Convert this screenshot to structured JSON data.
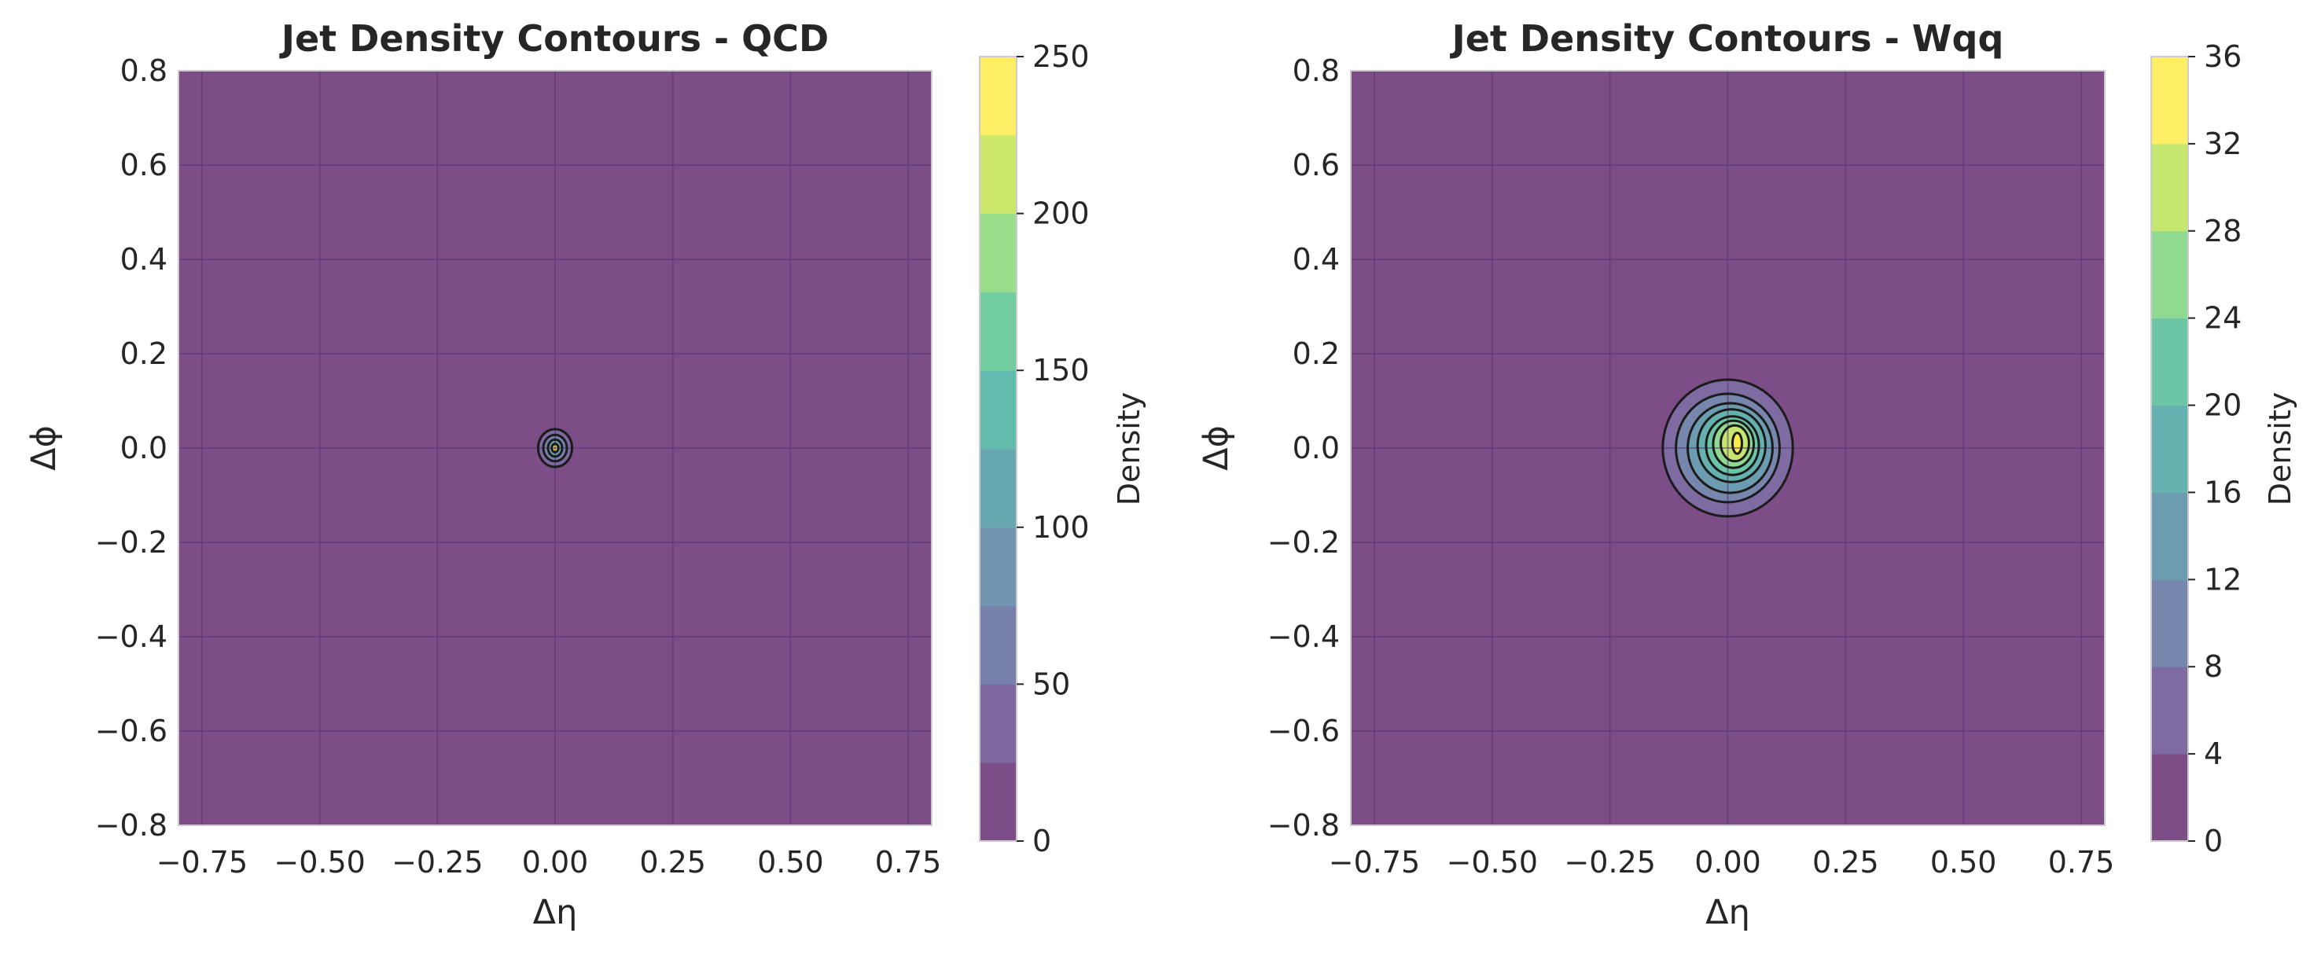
{
  "chart_data": [
    {
      "type": "contour",
      "title": "Jet Density Contours - QCD",
      "xlabel": "Δη",
      "ylabel": "Δϕ",
      "xlim": [
        -0.8,
        0.8
      ],
      "ylim": [
        -0.8,
        0.8
      ],
      "x_ticks": [
        -0.75,
        -0.5,
        -0.25,
        0.0,
        0.25,
        0.5,
        0.75
      ],
      "x_tick_labels": [
        "−0.75",
        "−0.50",
        "−0.25",
        "0.00",
        "0.25",
        "0.50",
        "0.75"
      ],
      "y_ticks": [
        0.8,
        0.6,
        0.4,
        0.2,
        0.0,
        -0.2,
        -0.4,
        -0.6,
        -0.8
      ],
      "y_tick_labels": [
        "0.8",
        "0.6",
        "0.4",
        "0.2",
        "0.0",
        "−0.2",
        "−0.4",
        "−0.6",
        "−0.8"
      ],
      "grid": true,
      "colormap": "viridis",
      "colorbar": {
        "label": "Density",
        "levels": [
          0,
          25,
          50,
          75,
          100,
          125,
          150,
          175,
          200,
          225,
          250
        ],
        "ticks": [
          0,
          50,
          100,
          150,
          200,
          250
        ],
        "tick_labels": [
          "0",
          "50",
          "100",
          "150",
          "200",
          "250"
        ]
      },
      "peak": {
        "x": 0.0,
        "y": 0.0,
        "value": 250
      },
      "contour_lines": [
        {
          "level": 25,
          "rx": 0.036,
          "ry": 0.04,
          "cx": 0.0,
          "cy": 0.0
        },
        {
          "level": 50,
          "rx": 0.025,
          "ry": 0.028,
          "cx": 0.0,
          "cy": 0.0
        },
        {
          "level": 100,
          "rx": 0.015,
          "ry": 0.018,
          "cx": 0.0,
          "cy": 0.0
        },
        {
          "level": 175,
          "rx": 0.007,
          "ry": 0.009,
          "cx": 0.0,
          "cy": 0.0
        }
      ]
    },
    {
      "type": "contour",
      "title": "Jet Density Contours - Wqq",
      "xlabel": "Δη",
      "ylabel": "Δϕ",
      "xlim": [
        -0.8,
        0.8
      ],
      "ylim": [
        -0.8,
        0.8
      ],
      "x_ticks": [
        -0.75,
        -0.5,
        -0.25,
        0.0,
        0.25,
        0.5,
        0.75
      ],
      "x_tick_labels": [
        "−0.75",
        "−0.50",
        "−0.25",
        "0.00",
        "0.25",
        "0.50",
        "0.75"
      ],
      "y_ticks": [
        0.8,
        0.6,
        0.4,
        0.2,
        0.0,
        -0.2,
        -0.4,
        -0.6,
        -0.8
      ],
      "y_tick_labels": [
        "0.8",
        "0.6",
        "0.4",
        "0.2",
        "0.0",
        "−0.2",
        "−0.4",
        "−0.6",
        "−0.8"
      ],
      "grid": true,
      "colormap": "viridis",
      "colorbar": {
        "label": "Density",
        "levels": [
          0,
          4,
          8,
          12,
          16,
          20,
          24,
          28,
          32,
          36
        ],
        "ticks": [
          0,
          4,
          8,
          12,
          16,
          20,
          24,
          28,
          32,
          36
        ],
        "tick_labels": [
          "0",
          "4",
          "8",
          "12",
          "16",
          "20",
          "24",
          "28",
          "32",
          "36"
        ]
      },
      "peak": {
        "x": 0.02,
        "y": 0.01,
        "value": 32
      },
      "contour_lines": [
        {
          "level": 4,
          "rx": 0.138,
          "ry": 0.145,
          "cx": 0.0,
          "cy": 0.0
        },
        {
          "level": 8,
          "rx": 0.11,
          "ry": 0.115,
          "cx": 0.0,
          "cy": 0.0
        },
        {
          "level": 12,
          "rx": 0.09,
          "ry": 0.095,
          "cx": 0.005,
          "cy": 0.0
        },
        {
          "level": 16,
          "rx": 0.072,
          "ry": 0.077,
          "cx": 0.008,
          "cy": 0.005
        },
        {
          "level": 20,
          "rx": 0.056,
          "ry": 0.062,
          "cx": 0.01,
          "cy": 0.005
        },
        {
          "level": 24,
          "rx": 0.043,
          "ry": 0.05,
          "cx": 0.012,
          "cy": 0.008
        },
        {
          "level": 28,
          "rx": 0.03,
          "ry": 0.038,
          "cx": 0.015,
          "cy": 0.01
        },
        {
          "level": 32,
          "rx": 0.01,
          "ry": 0.022,
          "cx": 0.02,
          "cy": 0.01
        }
      ]
    }
  ]
}
